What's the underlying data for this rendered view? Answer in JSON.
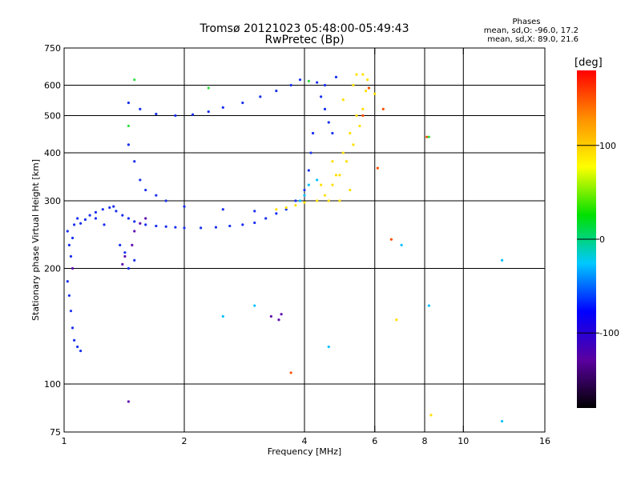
{
  "header": {
    "title": "Tromsø 20121023 05:48:00-05:49:43",
    "subtitle": "RwPretec (Bp)"
  },
  "phases_box": {
    "heading": "Phases",
    "line1": "mean, sd,O: -96.0, 17.2",
    "line2": "mean, sd,X:  89.0, 21.6"
  },
  "chart_data": {
    "type": "scatter",
    "title": "Tromsø 20121023 05:48:00-05:49:43",
    "subtitle": "RwPretec (Bp)",
    "xlabel": "Frequency [MHz]",
    "ylabel": "Stationary phase Virtual Height [km]",
    "x_scale": "log",
    "y_scale": "log",
    "xlim": [
      1,
      16
    ],
    "ylim": [
      75,
      750
    ],
    "x_ticks": [
      1,
      2,
      4,
      6,
      8,
      10,
      16
    ],
    "x_tick_labels": [
      "1",
      "2",
      "4",
      "6",
      "8",
      "10",
      "16"
    ],
    "x_gridlines": [
      2,
      4,
      6,
      8,
      10
    ],
    "y_ticks": [
      75,
      100,
      200,
      300,
      400,
      500,
      600,
      750
    ],
    "y_tick_labels": [
      "75",
      "100",
      "200",
      "300",
      "400",
      "500",
      "600",
      "750"
    ],
    "y_gridlines": [
      100,
      200,
      300,
      400,
      500,
      600
    ],
    "grid": true,
    "colorbar": {
      "label": "[deg]",
      "range": [
        -180,
        180
      ],
      "ticks": [
        100,
        0,
        -100
      ],
      "tick_labels": [
        "100",
        "0",
        "-100"
      ],
      "colors": [
        "#000000",
        "#5a00a0",
        "#0000ff",
        "#00c8ff",
        "#00e000",
        "#ffff00",
        "#ff9000",
        "#ff0000"
      ]
    },
    "series": [
      {
        "phase_deg": -100,
        "color": "#1a30f0",
        "points": [
          [
            1.02,
            250
          ],
          [
            1.03,
            230
          ],
          [
            1.04,
            215
          ],
          [
            1.05,
            240
          ],
          [
            1.06,
            260
          ],
          [
            1.08,
            270
          ],
          [
            1.1,
            262
          ],
          [
            1.13,
            268
          ],
          [
            1.16,
            275
          ],
          [
            1.2,
            280
          ],
          [
            1.25,
            285
          ],
          [
            1.3,
            288
          ],
          [
            1.35,
            282
          ],
          [
            1.4,
            275
          ],
          [
            1.45,
            270
          ],
          [
            1.5,
            265
          ],
          [
            1.6,
            260
          ],
          [
            1.7,
            258
          ],
          [
            1.8,
            257
          ],
          [
            1.9,
            256
          ],
          [
            2.0,
            255
          ],
          [
            2.2,
            255
          ],
          [
            2.4,
            256
          ],
          [
            2.6,
            258
          ],
          [
            2.8,
            260
          ],
          [
            3.0,
            263
          ],
          [
            3.2,
            270
          ],
          [
            3.4,
            278
          ],
          [
            3.6,
            285
          ],
          [
            3.8,
            300
          ],
          [
            4.0,
            320
          ],
          [
            4.1,
            360
          ],
          [
            4.15,
            400
          ],
          [
            4.2,
            450
          ],
          [
            1.02,
            185
          ],
          [
            1.03,
            170
          ],
          [
            1.04,
            155
          ],
          [
            1.05,
            140
          ],
          [
            1.06,
            130
          ],
          [
            1.08,
            125
          ],
          [
            1.1,
            122
          ],
          [
            1.45,
            540
          ],
          [
            1.55,
            520
          ],
          [
            1.7,
            505
          ],
          [
            1.9,
            500
          ],
          [
            2.1,
            503
          ],
          [
            2.3,
            512
          ],
          [
            2.5,
            525
          ],
          [
            2.8,
            540
          ],
          [
            3.1,
            560
          ],
          [
            3.4,
            580
          ],
          [
            3.7,
            600
          ],
          [
            3.9,
            620
          ],
          [
            4.3,
            610
          ],
          [
            4.4,
            560
          ],
          [
            4.5,
            520
          ],
          [
            4.6,
            480
          ],
          [
            4.7,
            450
          ],
          [
            4.5,
            600
          ],
          [
            4.8,
            630
          ],
          [
            1.45,
            420
          ],
          [
            1.5,
            380
          ],
          [
            1.55,
            340
          ],
          [
            1.6,
            320
          ],
          [
            1.7,
            310
          ],
          [
            1.8,
            300
          ],
          [
            2.0,
            290
          ],
          [
            2.5,
            285
          ],
          [
            3.0,
            282
          ],
          [
            1.42,
            220
          ],
          [
            1.45,
            200
          ],
          [
            1.5,
            210
          ],
          [
            1.38,
            230
          ],
          [
            1.26,
            260
          ],
          [
            1.33,
            290
          ],
          [
            1.2,
            270
          ]
        ]
      },
      {
        "phase_deg": -150,
        "color": "#6010b0",
        "points": [
          [
            1.05,
            200
          ],
          [
            1.4,
            205
          ],
          [
            1.42,
            215
          ],
          [
            1.48,
            230
          ],
          [
            1.5,
            250
          ],
          [
            1.55,
            262
          ],
          [
            1.6,
            270
          ],
          [
            3.3,
            150
          ],
          [
            3.5,
            152
          ],
          [
            3.45,
            147
          ],
          [
            1.45,
            90
          ]
        ]
      },
      {
        "phase_deg": -20,
        "color": "#00c0ff",
        "points": [
          [
            3.9,
            300
          ],
          [
            4.0,
            310
          ],
          [
            4.1,
            330
          ],
          [
            4.3,
            340
          ],
          [
            2.5,
            150
          ],
          [
            3.0,
            160
          ],
          [
            4.6,
            125
          ],
          [
            7.0,
            230
          ],
          [
            8.2,
            160
          ],
          [
            12.5,
            210
          ],
          [
            12.5,
            80
          ]
        ]
      },
      {
        "phase_deg": 100,
        "color": "#ffe000",
        "points": [
          [
            3.4,
            285
          ],
          [
            3.6,
            288
          ],
          [
            3.8,
            292
          ],
          [
            4.0,
            297
          ],
          [
            4.3,
            300
          ],
          [
            4.5,
            310
          ],
          [
            4.7,
            330
          ],
          [
            4.9,
            350
          ],
          [
            5.1,
            380
          ],
          [
            5.3,
            420
          ],
          [
            5.5,
            470
          ],
          [
            5.6,
            520
          ],
          [
            5.7,
            580
          ],
          [
            5.75,
            620
          ],
          [
            4.8,
            350
          ],
          [
            5.0,
            400
          ],
          [
            5.2,
            450
          ],
          [
            5.4,
            500
          ],
          [
            5.3,
            600
          ],
          [
            5.0,
            550
          ],
          [
            4.6,
            300
          ],
          [
            4.9,
            300
          ],
          [
            5.2,
            320
          ],
          [
            4.4,
            330
          ],
          [
            4.7,
            380
          ],
          [
            5.6,
            640
          ],
          [
            5.4,
            640
          ],
          [
            6.0,
            570
          ],
          [
            8.3,
            83
          ],
          [
            6.8,
            147
          ]
        ]
      },
      {
        "phase_deg": 150,
        "color": "#ff5000",
        "points": [
          [
            5.6,
            500
          ],
          [
            5.8,
            590
          ],
          [
            6.3,
            520
          ],
          [
            8.1,
            440
          ],
          [
            6.6,
            238
          ],
          [
            3.7,
            107
          ],
          [
            6.1,
            365
          ]
        ]
      },
      {
        "phase_deg": 40,
        "color": "#30e040",
        "points": [
          [
            1.45,
            470
          ],
          [
            1.5,
            620
          ],
          [
            2.3,
            590
          ],
          [
            4.1,
            615
          ],
          [
            8.2,
            440
          ]
        ]
      }
    ]
  }
}
